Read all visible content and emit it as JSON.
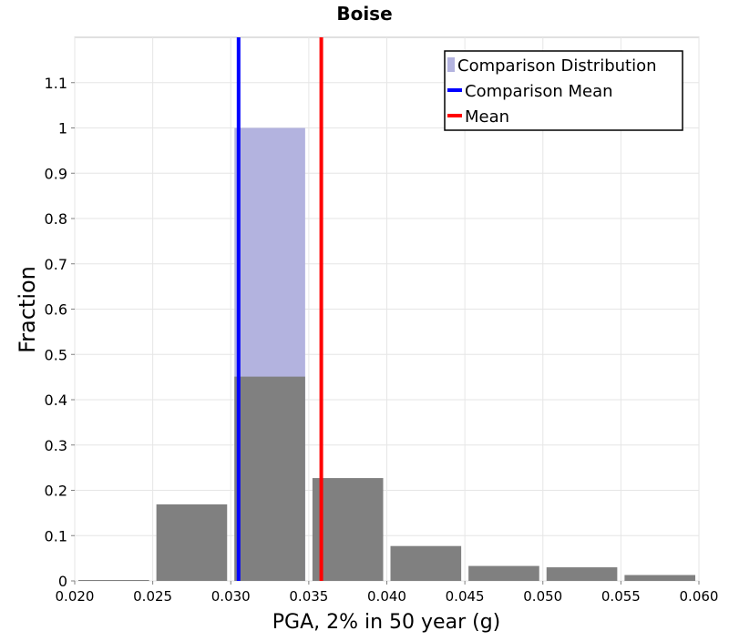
{
  "chart_data": {
    "type": "bar",
    "title": "Boise",
    "xlabel": "PGA, 2% in 50 year (g)",
    "ylabel": "Fraction",
    "xlim": [
      0.02,
      0.06
    ],
    "ylim": [
      0,
      1.2
    ],
    "x_ticks": [
      "0.020",
      "0.025",
      "0.030",
      "0.035",
      "0.040",
      "0.045",
      "0.050",
      "0.055",
      "0.060"
    ],
    "y_ticks": [
      "0",
      "0.1",
      "0.2",
      "0.3",
      "0.4",
      "0.5",
      "0.6",
      "0.7",
      "0.8",
      "0.9",
      "1",
      "1.1"
    ],
    "grid": true,
    "legend_position": "top-right",
    "bin_edges": [
      0.02,
      0.025,
      0.03,
      0.035,
      0.04,
      0.045,
      0.05,
      0.055,
      0.06
    ],
    "series": [
      {
        "name": "Comparison Distribution",
        "kind": "bar",
        "color": "#b3b3df",
        "bins": [
          {
            "from": 0.03,
            "to": 0.035,
            "value": 1.0
          }
        ]
      },
      {
        "kind": "bar",
        "color": "#808080",
        "bins": [
          {
            "from": 0.02,
            "to": 0.025,
            "value": 0.002
          },
          {
            "from": 0.025,
            "to": 0.03,
            "value": 0.169
          },
          {
            "from": 0.03,
            "to": 0.035,
            "value": 0.451
          },
          {
            "from": 0.035,
            "to": 0.04,
            "value": 0.227
          },
          {
            "from": 0.04,
            "to": 0.045,
            "value": 0.077
          },
          {
            "from": 0.045,
            "to": 0.05,
            "value": 0.033
          },
          {
            "from": 0.05,
            "to": 0.055,
            "value": 0.03
          },
          {
            "from": 0.055,
            "to": 0.06,
            "value": 0.013
          }
        ]
      },
      {
        "name": "Comparison Mean",
        "kind": "vline",
        "color": "#0000ff",
        "x": 0.0305
      },
      {
        "name": "Mean",
        "kind": "vline",
        "color": "#ff0000",
        "x": 0.0358
      }
    ]
  }
}
